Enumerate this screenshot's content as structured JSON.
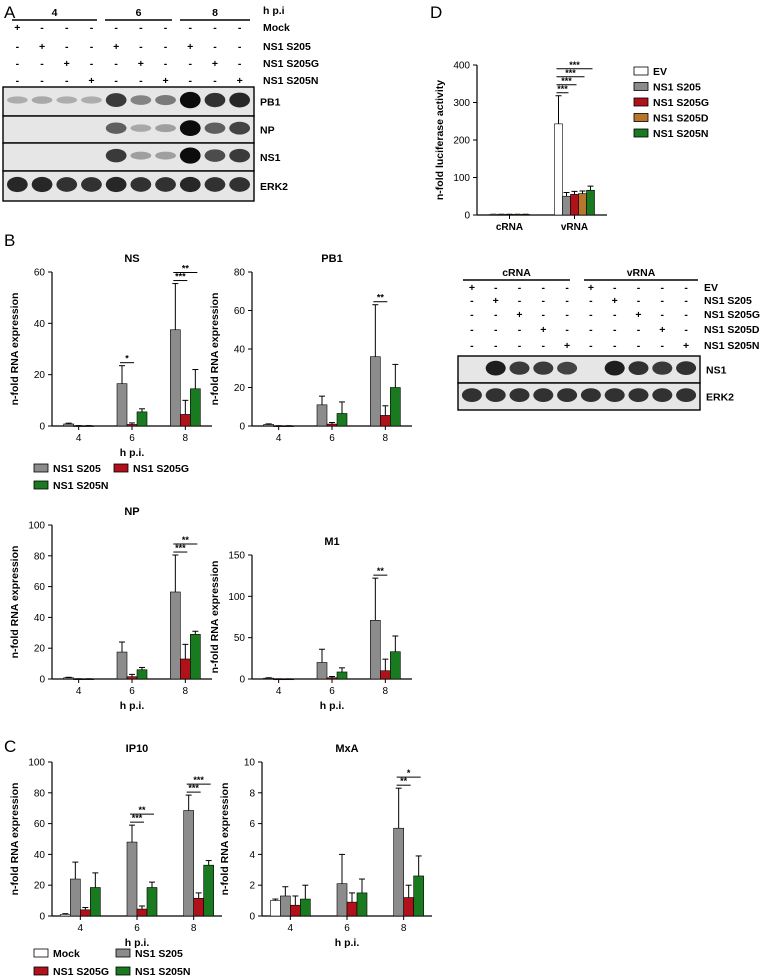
{
  "panels": {
    "A": {
      "letter": "A",
      "hpi_label": "h p.i",
      "groups": [
        "4",
        "6",
        "8"
      ],
      "row_labels": [
        "Mock",
        "NS1 S205",
        "NS1 S205G",
        "NS1 S205N"
      ],
      "signs": [
        [
          "+",
          "-",
          "-",
          "-",
          "-",
          "-",
          "-",
          "-",
          "-",
          "-"
        ],
        [
          "-",
          "+",
          "-",
          "-",
          "+",
          "-",
          "-",
          "+",
          "-",
          "-"
        ],
        [
          "-",
          "-",
          "+",
          "-",
          "-",
          "+",
          "-",
          "-",
          "+",
          "-"
        ],
        [
          "-",
          "-",
          "-",
          "+",
          "-",
          "-",
          "+",
          "-",
          "-",
          "+"
        ]
      ],
      "blot_labels": [
        "PB1",
        "NP",
        "NS1",
        "ERK2"
      ],
      "band_intensity": [
        [
          0.12,
          0.15,
          0.12,
          0.12,
          0.75,
          0.35,
          0.4,
          1.0,
          0.8,
          0.85
        ],
        [
          0.0,
          0.0,
          0.0,
          0.0,
          0.55,
          0.15,
          0.2,
          1.0,
          0.55,
          0.7
        ],
        [
          0.0,
          0.0,
          0.0,
          0.0,
          0.75,
          0.2,
          0.2,
          1.0,
          0.65,
          0.75
        ],
        [
          0.85,
          0.85,
          0.8,
          0.8,
          0.85,
          0.8,
          0.8,
          0.85,
          0.8,
          0.8
        ]
      ]
    },
    "B": {
      "letter": "B"
    },
    "C": {
      "letter": "C"
    },
    "D": {
      "letter": "D",
      "blot_groups": [
        "cRNA",
        "vRNA"
      ],
      "row_labels": [
        "EV",
        "NS1 S205",
        "NS1 S205G",
        "NS1 S205D",
        "NS1 S205N"
      ],
      "signs": [
        [
          "+",
          "-",
          "-",
          "-",
          "-",
          "+",
          "-",
          "-",
          "-",
          "-"
        ],
        [
          "-",
          "+",
          "-",
          "-",
          "-",
          "-",
          "+",
          "-",
          "-",
          "-"
        ],
        [
          "-",
          "-",
          "+",
          "-",
          "-",
          "-",
          "-",
          "+",
          "-",
          "-"
        ],
        [
          "-",
          "-",
          "-",
          "+",
          "-",
          "-",
          "-",
          "-",
          "+",
          "-"
        ],
        [
          "-",
          "-",
          "-",
          "-",
          "+",
          "-",
          "-",
          "-",
          "-",
          "+"
        ]
      ],
      "blot_labels": [
        "NS1",
        "ERK2"
      ],
      "band_intensity": [
        [
          0.0,
          0.9,
          0.75,
          0.75,
          0.7,
          0.0,
          0.9,
          0.8,
          0.75,
          0.8
        ],
        [
          0.8,
          0.8,
          0.8,
          0.8,
          0.8,
          0.8,
          0.8,
          0.8,
          0.8,
          0.8
        ]
      ]
    }
  },
  "legend_B": [
    "NS1 S205",
    "NS1 S205G",
    "NS1 S205N"
  ],
  "legend_C": [
    "Mock",
    "NS1 S205",
    "NS1 S205G",
    "NS1 S205N"
  ],
  "colors": {
    "Mock": "#ffffff",
    "EV": "#ffffff",
    "NS1 S205": "#8c8c8c",
    "NS1 S205G": "#b0121b",
    "NS1 S205D": "#b8762d",
    "NS1 S205N": "#1a7a1f"
  },
  "chart_data": [
    {
      "id": "NS",
      "type": "bar",
      "title": "NS",
      "xlabel": "h p.i.",
      "ylabel": "n-fold  RNA expression",
      "categories": [
        "4",
        "6",
        "8"
      ],
      "ylim": [
        0,
        60
      ],
      "yticks": [
        0,
        20,
        40,
        60
      ],
      "series": [
        {
          "name": "NS1 S205",
          "values": [
            0.8,
            16.5,
            37.5
          ],
          "errors": [
            0.3,
            7,
            18
          ]
        },
        {
          "name": "NS1 S205G",
          "values": [
            0.1,
            0.6,
            4.5
          ],
          "errors": [
            0.05,
            0.6,
            5.5
          ]
        },
        {
          "name": "NS1 S205N",
          "values": [
            0.1,
            5.5,
            14.5
          ],
          "errors": [
            0.05,
            1.2,
            7.5
          ]
        }
      ],
      "significance": [
        {
          "cat": "6",
          "from": "NS1 S205",
          "to": "NS1 S205G",
          "label": "*"
        },
        {
          "cat": "8",
          "from": "NS1 S205",
          "to": "NS1 S205G",
          "label": "***"
        },
        {
          "cat": "8",
          "from": "NS1 S205",
          "to": "NS1 S205N",
          "label": "**"
        }
      ]
    },
    {
      "id": "PB1",
      "type": "bar",
      "title": "PB1",
      "xlabel": "",
      "ylabel": "n-fold  RNA expression",
      "categories": [
        "4",
        "6",
        "8"
      ],
      "ylim": [
        0,
        80
      ],
      "yticks": [
        0,
        20,
        40,
        60,
        80
      ],
      "series": [
        {
          "name": "NS1 S205",
          "values": [
            0.8,
            11,
            36
          ],
          "errors": [
            0.3,
            4.5,
            27
          ]
        },
        {
          "name": "NS1 S205G",
          "values": [
            0.1,
            1,
            5.5
          ],
          "errors": [
            0.05,
            0.8,
            5
          ]
        },
        {
          "name": "NS1 S205N",
          "values": [
            0.1,
            6.5,
            20
          ],
          "errors": [
            0.05,
            6,
            12
          ]
        }
      ],
      "significance": [
        {
          "cat": "8",
          "from": "NS1 S205",
          "to": "NS1 S205G",
          "label": "**"
        }
      ]
    },
    {
      "id": "NP",
      "type": "bar",
      "title": "NP",
      "xlabel": "h p.i.",
      "ylabel": "n-fold  RNA expression",
      "categories": [
        "4",
        "6",
        "8"
      ],
      "ylim": [
        0,
        100
      ],
      "yticks": [
        0,
        20,
        40,
        60,
        80,
        100
      ],
      "series": [
        {
          "name": "NS1 S205",
          "values": [
            0.8,
            17.5,
            56.5
          ],
          "errors": [
            0.3,
            6.5,
            24
          ]
        },
        {
          "name": "NS1 S205G",
          "values": [
            0.1,
            1.5,
            13
          ],
          "errors": [
            0.05,
            1.5,
            9.5
          ]
        },
        {
          "name": "NS1 S205N",
          "values": [
            0.1,
            6,
            29
          ],
          "errors": [
            0.05,
            1.5,
            2
          ]
        }
      ],
      "significance": [
        {
          "cat": "8",
          "from": "NS1 S205",
          "to": "NS1 S205G",
          "label": "***"
        },
        {
          "cat": "8",
          "from": "NS1 S205",
          "to": "NS1 S205N",
          "label": "**"
        }
      ]
    },
    {
      "id": "M1",
      "type": "bar",
      "title": "M1",
      "xlabel": "h p.i.",
      "ylabel": "n-fold  RNA expression",
      "categories": [
        "4",
        "6",
        "8"
      ],
      "ylim": [
        0,
        150
      ],
      "yticks": [
        0,
        50,
        100,
        150
      ],
      "series": [
        {
          "name": "NS1 S205",
          "values": [
            1,
            20,
            71
          ],
          "errors": [
            0.5,
            16,
            51
          ]
        },
        {
          "name": "NS1 S205G",
          "values": [
            0.1,
            1.5,
            10
          ],
          "errors": [
            0.05,
            1.5,
            14
          ]
        },
        {
          "name": "NS1 S205N",
          "values": [
            0.1,
            8.5,
            33
          ],
          "errors": [
            0.05,
            5,
            19
          ]
        }
      ],
      "significance": [
        {
          "cat": "8",
          "from": "NS1 S205",
          "to": "NS1 S205G",
          "label": "**"
        }
      ]
    },
    {
      "id": "IP10",
      "type": "bar",
      "title": "IP10",
      "xlabel": "h p.i.",
      "ylabel": "n-fold  RNA expression",
      "categories": [
        "4",
        "6",
        "8"
      ],
      "ylim": [
        0,
        100
      ],
      "yticks": [
        0,
        20,
        40,
        60,
        80,
        100
      ],
      "series": [
        {
          "name": "Mock",
          "values": [
            1,
            null,
            null
          ],
          "errors": [
            0.5,
            null,
            null
          ]
        },
        {
          "name": "NS1 S205",
          "values": [
            24,
            48,
            68.5
          ],
          "errors": [
            11,
            11,
            10
          ]
        },
        {
          "name": "NS1 S205G",
          "values": [
            4,
            4.5,
            11.5
          ],
          "errors": [
            1.5,
            2,
            3.5
          ]
        },
        {
          "name": "NS1 S205N",
          "values": [
            18.5,
            18.5,
            33
          ],
          "errors": [
            9.5,
            3.5,
            3
          ]
        }
      ],
      "significance": [
        {
          "cat": "6",
          "from": "NS1 S205",
          "to": "NS1 S205G",
          "label": "***"
        },
        {
          "cat": "6",
          "from": "NS1 S205",
          "to": "NS1 S205N",
          "label": "**"
        },
        {
          "cat": "8",
          "from": "NS1 S205",
          "to": "NS1 S205G",
          "label": "***"
        },
        {
          "cat": "8",
          "from": "NS1 S205",
          "to": "NS1 S205N",
          "label": "***"
        }
      ]
    },
    {
      "id": "MxA",
      "type": "bar",
      "title": "MxA",
      "xlabel": "h p.i.",
      "ylabel": "n-fold  RNA expression",
      "categories": [
        "4",
        "6",
        "8"
      ],
      "ylim": [
        0,
        10
      ],
      "yticks": [
        0,
        2,
        4,
        6,
        8,
        10
      ],
      "series": [
        {
          "name": "Mock",
          "values": [
            1,
            null,
            null
          ],
          "errors": [
            0.1,
            null,
            null
          ]
        },
        {
          "name": "NS1 S205",
          "values": [
            1.3,
            2.1,
            5.7
          ],
          "errors": [
            0.6,
            1.9,
            2.6
          ]
        },
        {
          "name": "NS1 S205G",
          "values": [
            0.7,
            0.9,
            1.2
          ],
          "errors": [
            0.6,
            0.6,
            0.8
          ]
        },
        {
          "name": "NS1 S205N",
          "values": [
            1.1,
            1.5,
            2.6
          ],
          "errors": [
            0.9,
            0.9,
            1.3
          ]
        }
      ],
      "significance": [
        {
          "cat": "8",
          "from": "NS1 S205",
          "to": "NS1 S205G",
          "label": "**"
        },
        {
          "cat": "8",
          "from": "NS1 S205",
          "to": "NS1 S205N",
          "label": "*"
        }
      ]
    },
    {
      "id": "luciferase",
      "type": "bar",
      "title": "",
      "xlabel": "",
      "ylabel": "n-fold luciferase activity",
      "categories": [
        "cRNA",
        "vRNA"
      ],
      "ylim": [
        0,
        400
      ],
      "yticks": [
        0,
        100,
        200,
        300,
        400
      ],
      "series": [
        {
          "name": "EV",
          "values": [
            1.5,
            243
          ],
          "errors": [
            0.5,
            75
          ]
        },
        {
          "name": "NS1 S205",
          "values": [
            1.5,
            50
          ],
          "errors": [
            0.5,
            10
          ]
        },
        {
          "name": "NS1 S205G",
          "values": [
            1.5,
            55
          ],
          "errors": [
            0.5,
            8
          ]
        },
        {
          "name": "NS1 S205D",
          "values": [
            1.5,
            57
          ],
          "errors": [
            0.5,
            7
          ]
        },
        {
          "name": "NS1 S205N",
          "values": [
            1.5,
            66
          ],
          "errors": [
            0.5,
            11
          ]
        }
      ],
      "legend": [
        "EV",
        "NS1 S205",
        "NS1 S205G",
        "NS1 S205D",
        "NS1 S205N"
      ],
      "significance": [
        {
          "cat": "vRNA",
          "from": "EV",
          "to": "NS1 S205",
          "label": "***"
        },
        {
          "cat": "vRNA",
          "from": "EV",
          "to": "NS1 S205G",
          "label": "***"
        },
        {
          "cat": "vRNA",
          "from": "EV",
          "to": "NS1 S205D",
          "label": "***"
        },
        {
          "cat": "vRNA",
          "from": "EV",
          "to": "NS1 S205N",
          "label": "***"
        }
      ]
    }
  ]
}
